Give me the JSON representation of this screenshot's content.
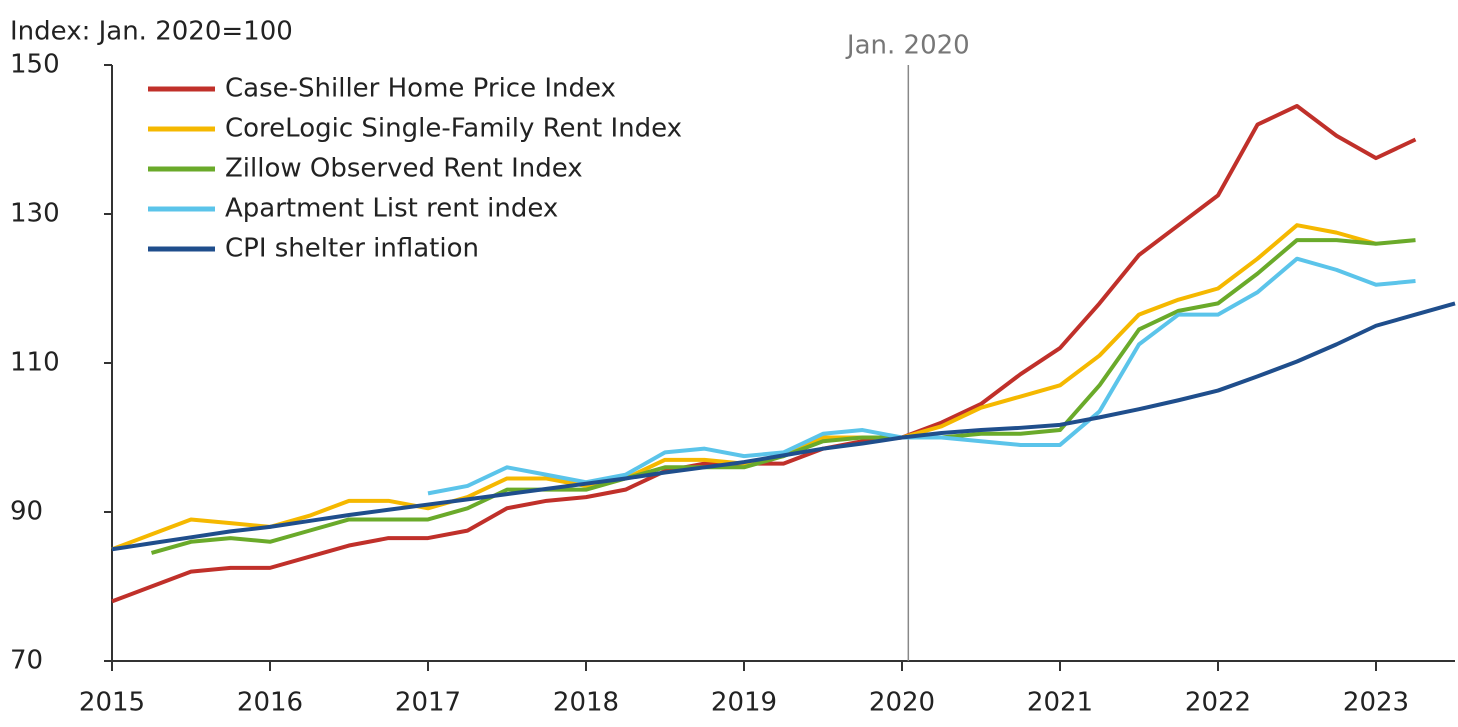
{
  "chart_data": {
    "type": "line",
    "y_label": "Index: Jan. 2020=100",
    "annotation": {
      "text": "Jan. 2020",
      "x": 2020.04
    },
    "xlim": [
      2015,
      2023.5
    ],
    "xticks": [
      2015,
      2016,
      2017,
      2018,
      2019,
      2020,
      2021,
      2022,
      2023
    ],
    "ylim": [
      70,
      150
    ],
    "yticks": [
      70,
      90,
      110,
      130,
      150
    ],
    "grid": false,
    "legend": "upper left",
    "x": [
      2015,
      2015.25,
      2015.5,
      2015.75,
      2016,
      2016.25,
      2016.5,
      2016.75,
      2017,
      2017.25,
      2017.5,
      2017.75,
      2018,
      2018.25,
      2018.5,
      2018.75,
      2019,
      2019.25,
      2019.5,
      2019.75,
      2020,
      2020.25,
      2020.5,
      2020.75,
      2021,
      2021.25,
      2021.5,
      2021.75,
      2022,
      2022.25,
      2022.5,
      2022.75,
      2023,
      2023.25,
      2023.5
    ],
    "series": [
      {
        "name": "Case-Shiller Home Price Index",
        "color": "#c0302a",
        "values": [
          78,
          80,
          82,
          82.5,
          82.5,
          84,
          85.5,
          86.5,
          86.5,
          87.5,
          90.5,
          91.5,
          92,
          93,
          95.5,
          96.5,
          96.5,
          96.5,
          98.5,
          99.5,
          100,
          102,
          104.5,
          108.5,
          112,
          118,
          124.5,
          128.5,
          132.5,
          142,
          144.5,
          140.5,
          137.5,
          140,
          null
        ]
      },
      {
        "name": "CoreLogic Single-Family Rent Index",
        "color": "#f5b800",
        "values": [
          85,
          87,
          89,
          88.5,
          88,
          89.5,
          91.5,
          91.5,
          90.5,
          92,
          94.5,
          94.5,
          93.5,
          94.5,
          97,
          97,
          96.5,
          97.5,
          100,
          100,
          100,
          101.5,
          104,
          105.5,
          107,
          111,
          116.5,
          118.5,
          120,
          124,
          128.5,
          127.5,
          126,
          null,
          null
        ]
      },
      {
        "name": "Zillow Observed Rent Index",
        "color": "#6aaa2a",
        "values": [
          null,
          84.5,
          86,
          86.5,
          86,
          87.5,
          89,
          89,
          89,
          90.5,
          93,
          93,
          93,
          94.5,
          96,
          96,
          96,
          97.5,
          99.5,
          100,
          100,
          100,
          100.5,
          100.5,
          101,
          107,
          114.5,
          117,
          118,
          122,
          126.5,
          126.5,
          126,
          126.5,
          null
        ]
      },
      {
        "name": "Apartment List rent index",
        "color": "#5bc4ea",
        "values": [
          null,
          null,
          null,
          null,
          null,
          null,
          null,
          null,
          92.5,
          93.5,
          96,
          95,
          94,
          95,
          98,
          98.5,
          97.5,
          98,
          100.5,
          101,
          100,
          100,
          99.5,
          99,
          99,
          103.5,
          112.5,
          116.5,
          116.5,
          119.5,
          124,
          122.5,
          120.5,
          121,
          null
        ]
      },
      {
        "name": "CPI shelter inflation",
        "color": "#1f4e8c",
        "values": [
          85,
          85.8,
          86.6,
          87.4,
          88,
          88.8,
          89.6,
          90.3,
          91,
          91.7,
          92.4,
          93.1,
          93.8,
          94.5,
          95.3,
          96,
          96.7,
          97.6,
          98.5,
          99.2,
          100,
          100.6,
          101,
          101.3,
          101.7,
          102.7,
          103.8,
          105,
          106.3,
          108.2,
          110.2,
          112.5,
          115,
          116.5,
          118
        ]
      }
    ]
  }
}
